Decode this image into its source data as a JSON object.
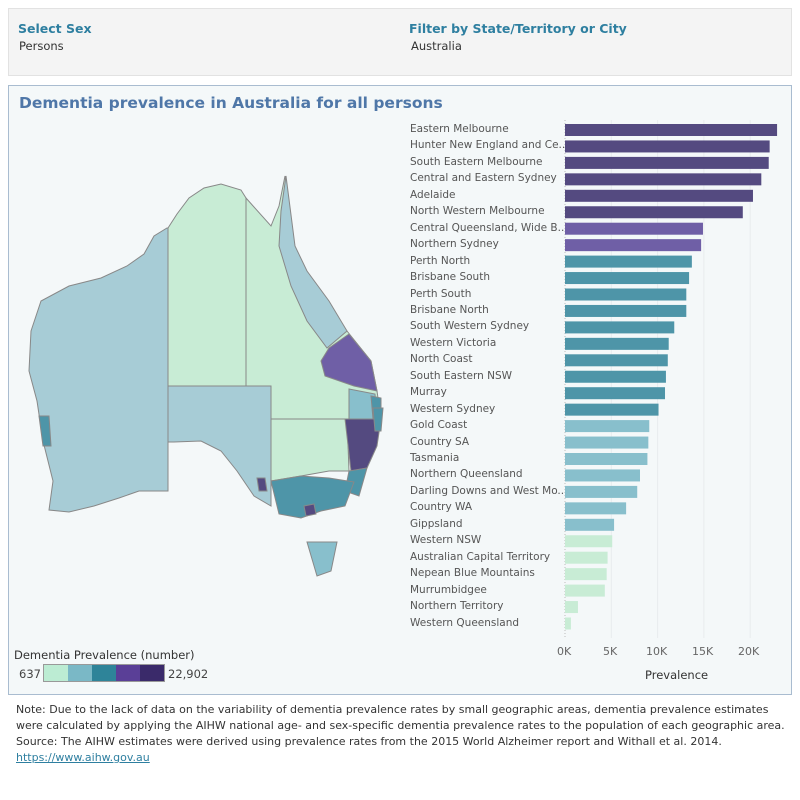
{
  "filters": {
    "sex_label": "Select Sex",
    "sex_value": "Persons",
    "region_label": "Filter by State/Territory or City",
    "region_value": "Australia"
  },
  "title": "Dementia prevalence in Australia for all persons",
  "legend": {
    "title": "Dementia Prevalence (number)",
    "min": "637",
    "max": "22,902",
    "colors": [
      "#bcecd3",
      "#7ab8c6",
      "#2e8499",
      "#5a3f97",
      "#3a2a6a"
    ]
  },
  "chart_data": {
    "type": "bar",
    "orientation": "horizontal",
    "xlabel": "Prevalence",
    "xlim": [
      0,
      23000
    ],
    "ticks": [
      "0K",
      "5K",
      "10K",
      "15K",
      "20K"
    ],
    "grid": true,
    "categories": [
      "Eastern Melbourne",
      "Hunter New England and Ce..",
      "South Eastern Melbourne",
      "Central and Eastern Sydney",
      "Adelaide",
      "North Western Melbourne",
      "Central Queensland, Wide B..",
      "Northern Sydney",
      "Perth North",
      "Brisbane South",
      "Perth South",
      "Brisbane North",
      "South Western Sydney",
      "Western Victoria",
      "North Coast",
      "South Eastern NSW",
      "Murray",
      "Western Sydney",
      "Gold Coast",
      "Country SA",
      "Tasmania",
      "Northern Queensland",
      "Darling Downs and West Mo..",
      "Country WA",
      "Gippsland",
      "Western NSW",
      "Australian Capital Territory",
      "Nepean Blue Mountains",
      "Murrumbidgee",
      "Northern Territory",
      "Western Queensland"
    ],
    "values": [
      22902,
      22100,
      22000,
      21200,
      20300,
      19200,
      14900,
      14700,
      13700,
      13400,
      13100,
      13100,
      11800,
      11200,
      11100,
      10900,
      10800,
      10100,
      9100,
      9000,
      8900,
      8100,
      7800,
      6600,
      5300,
      5100,
      4600,
      4500,
      4300,
      1400,
      637
    ],
    "bar_colors": {
      "dark_purple": "#544a80",
      "purple": "#6f5fa6",
      "teal": "#4e95a8",
      "light_teal": "#88bfcc",
      "mint": "#c8ecd5"
    }
  },
  "note": {
    "line1": "Note: Due to the lack of data on the variability of dementia prevalence rates by small geographic areas, dementia prevalence estimates were calculated by applying the AIHW national age- and sex-specific dementia prevalence rates to the population of each geographic area.",
    "line2": "Source: The AIHW estimates were derived using prevalence rates from the 2015 World Alzheimer report and Withall et al. 2014.",
    "link": "https://www.aihw.gov.au"
  }
}
